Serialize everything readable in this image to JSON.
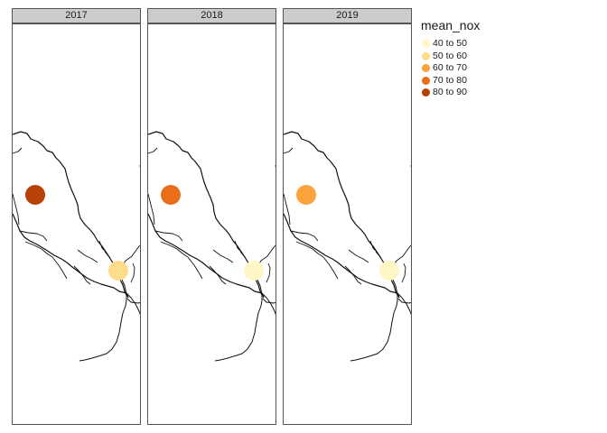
{
  "map": {
    "legend": {
      "title": "mean_nox",
      "items": [
        {
          "label": "40 to 50",
          "color": "#fff6c6"
        },
        {
          "label": "50 to 60",
          "color": "#fedd8a"
        },
        {
          "label": "60 to 70",
          "color": "#f9a33a"
        },
        {
          "label": "70 to 80",
          "color": "#ea6e17"
        },
        {
          "label": "80 to 90",
          "color": "#b84107"
        }
      ]
    },
    "panels": [
      {
        "year": "2017",
        "site_classes": [
          "80 to 90",
          "50 to 60"
        ]
      },
      {
        "year": "2018",
        "site_classes": [
          "70 to 80",
          "40 to 50"
        ]
      },
      {
        "year": "2019",
        "site_classes": [
          "60 to 70",
          "40 to 50"
        ]
      }
    ]
  }
}
